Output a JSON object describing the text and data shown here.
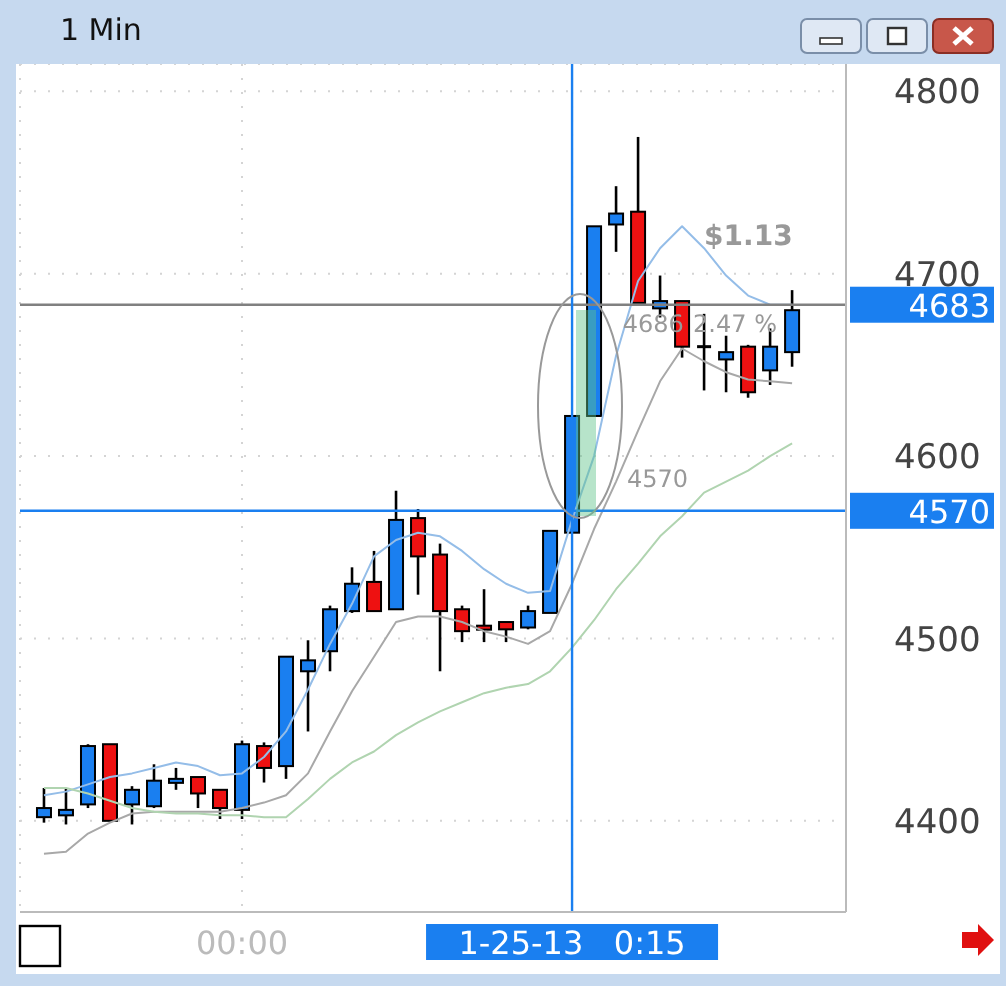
{
  "chart_data": {
    "type": "candlestick",
    "title": "1 Min",
    "categories": [
      null,
      null,
      null,
      null,
      null,
      null,
      null,
      null,
      null,
      "00:00",
      null,
      null,
      null,
      null,
      null,
      null,
      null,
      null,
      null,
      null,
      null,
      null,
      null,
      null,
      "1-25-13   0:15",
      null,
      null,
      null,
      null,
      null,
      null,
      null,
      null,
      null,
      null
    ],
    "ohlc": [
      [
        4402,
        4418,
        4399,
        4407
      ],
      [
        4403,
        4418,
        4398,
        4406
      ],
      [
        4409,
        4442,
        4407,
        4441
      ],
      [
        4442,
        4442,
        4400,
        4400
      ],
      [
        4409,
        4419,
        4398,
        4417
      ],
      [
        4408,
        4431,
        4407,
        4422
      ],
      [
        4422,
        4429,
        4417,
        4423
      ],
      [
        4424,
        4424,
        4407,
        4415
      ],
      [
        4417,
        4417,
        4401,
        4407
      ],
      [
        4406,
        4444,
        4401,
        4442
      ],
      [
        4441,
        4443,
        4421,
        4429
      ],
      [
        4430,
        4490,
        4423,
        4490
      ],
      [
        4482,
        4499,
        4449,
        4488
      ],
      [
        4493,
        4518,
        4482,
        4516
      ],
      [
        4515,
        4539,
        4514,
        4530
      ],
      [
        4531,
        4548,
        4515,
        4515
      ],
      [
        4516,
        4581,
        4516,
        4565
      ],
      [
        4566,
        4571,
        4524,
        4545
      ],
      [
        4546,
        4552,
        4482,
        4515
      ],
      [
        4516,
        4518,
        4498,
        4504
      ],
      [
        4507,
        4527,
        4498,
        4506
      ],
      [
        4509,
        4509,
        4498,
        4505
      ],
      [
        4506,
        4518,
        4505,
        4515
      ],
      [
        4514,
        4559,
        4514,
        4559
      ],
      [
        4558,
        4622,
        4558,
        4622
      ],
      [
        4622,
        4726,
        4622,
        4726
      ],
      [
        4727,
        4748,
        4712,
        4733
      ],
      [
        4734,
        4775,
        4684,
        4684
      ],
      [
        4681,
        4699,
        4676,
        4685
      ],
      [
        4685,
        4685,
        4654,
        4660
      ],
      [
        4660,
        4678,
        4636,
        4660
      ],
      [
        4653,
        4666,
        4635,
        4657
      ],
      [
        4660,
        4661,
        4632,
        4635
      ],
      [
        4647,
        4670,
        4639,
        4660
      ],
      [
        4657,
        4691,
        4649,
        4680
      ]
    ],
    "colors": [
      "#1a7ff0",
      "#1a7ff0",
      "#1a7ff0",
      "#ee1111",
      "#1a7ff0",
      "#1a7ff0",
      "#1a7ff0",
      "#ee1111",
      "#ee1111",
      "#1a7ff0",
      "#ee1111",
      "#1a7ff0",
      "#1a7ff0",
      "#1a7ff0",
      "#1a7ff0",
      "#ee1111",
      "#1a7ff0",
      "#ee1111",
      "#ee1111",
      "#ee1111",
      "#ee1111",
      "#ee1111",
      "#1a7ff0",
      "#1a7ff0",
      "#1a7ff0",
      "#1a7ff0",
      "#1a7ff0",
      "#ee1111",
      "#1a7ff0",
      "#ee1111",
      "#000000",
      "#1a7ff0",
      "#ee1111",
      "#1a7ff0",
      "#1a7ff0"
    ],
    "series": [
      {
        "type": "line",
        "color": "#94bde8",
        "values": [
          4414,
          4416,
          4420,
          4424,
          4426,
          4429,
          4432,
          4430,
          4425,
          4426,
          4435,
          4449,
          4472,
          4497,
          4519,
          4545,
          4554,
          4558,
          4556,
          4548,
          4538,
          4530,
          4525,
          4526,
          4565,
          4600,
          4655,
          4696,
          4714,
          4726,
          4714,
          4699,
          4688,
          4683,
          4683
        ]
      },
      {
        "type": "line",
        "color": "#a8a8a8",
        "values": [
          4382,
          4383,
          4393,
          4399,
          4404,
          4405,
          4405,
          4405,
          4405,
          4407,
          4410,
          4414,
          4426,
          4449,
          4471,
          4490,
          4509,
          4512,
          4512,
          4509,
          4504,
          4501,
          4497,
          4504,
          4530,
          4560,
          4586,
          4614,
          4641,
          4659,
          4652,
          4646,
          4642,
          4641,
          4640
        ]
      },
      {
        "type": "line",
        "color": "#b0d4b0",
        "values": [
          4418,
          4418,
          4415,
          4411,
          4407,
          4405,
          4404,
          4404,
          4403,
          4403,
          4402,
          4402,
          4412,
          4423,
          4432,
          4438,
          4447,
          4454,
          4460,
          4465,
          4470,
          4473,
          4475,
          4482,
          4495,
          4510,
          4527,
          4541,
          4556,
          4567,
          4580,
          4586,
          4592,
          4600,
          4607
        ]
      }
    ],
    "ylim": [
      4350,
      4815
    ],
    "yticks": [
      4400,
      4500,
      4600,
      4700,
      4800
    ],
    "ref_lines": [
      {
        "axis": "y",
        "value": 4683,
        "label": "4683",
        "color": "#808080"
      },
      {
        "axis": "y",
        "value": 4570,
        "label": "4570",
        "color": "#1a7ff0"
      },
      {
        "axis": "x",
        "value": "1-25-13   0:15",
        "color": "#1a7ff0"
      }
    ],
    "annotations": [
      "$1.13",
      "4686",
      "2.47 %",
      "4570"
    ],
    "grid": true
  }
}
